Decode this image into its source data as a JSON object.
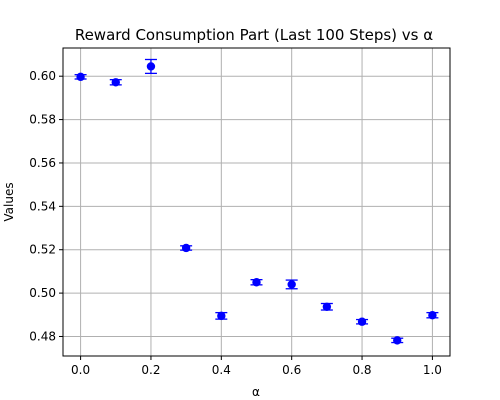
{
  "chart_data": {
    "type": "scatter",
    "title": "Reward Consumption Part (Last 100 Steps) vs α",
    "xlabel": "α",
    "ylabel": "Values",
    "xlim": [
      -0.05,
      1.05
    ],
    "ylim": [
      0.471,
      0.613
    ],
    "x_ticks": [
      0.0,
      0.2,
      0.4,
      0.6,
      0.8,
      1.0
    ],
    "x_tick_labels": [
      "0.0",
      "0.2",
      "0.4",
      "0.6",
      "0.8",
      "1.0"
    ],
    "y_ticks": [
      0.48,
      0.5,
      0.52,
      0.54,
      0.56,
      0.58,
      0.6
    ],
    "y_tick_labels": [
      "0.48",
      "0.50",
      "0.52",
      "0.54",
      "0.56",
      "0.58",
      "0.60"
    ],
    "grid": true,
    "marker_color": "#0000ff",
    "errorbar_color": "#0000ff",
    "series": [
      {
        "x": [
          0.0,
          0.1,
          0.2,
          0.3,
          0.4,
          0.5,
          0.6,
          0.7,
          0.8,
          0.9,
          1.0
        ],
        "y": [
          0.5997,
          0.5972,
          0.6045,
          0.5208,
          0.4895,
          0.505,
          0.504,
          0.4937,
          0.4868,
          0.4782,
          0.4898
        ],
        "yerr": [
          0.001,
          0.0012,
          0.0032,
          0.001,
          0.0015,
          0.0012,
          0.002,
          0.0015,
          0.001,
          0.001,
          0.0012
        ]
      }
    ]
  }
}
